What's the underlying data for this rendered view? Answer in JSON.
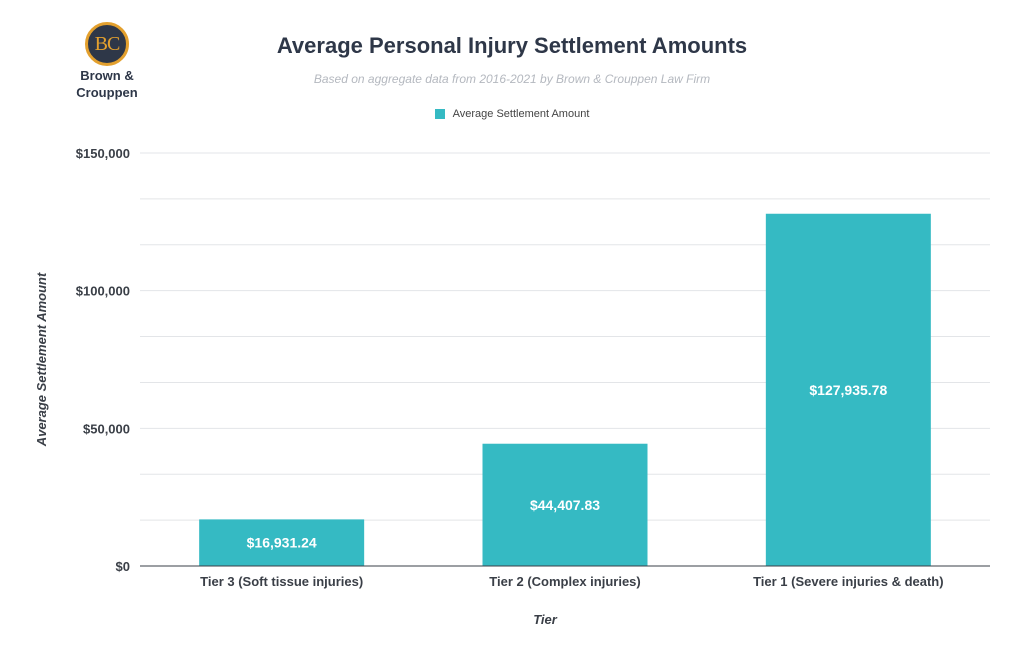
{
  "logo": {
    "monogram": "BC",
    "name_line1": "Brown &",
    "name_line2": "Crouppen"
  },
  "chart_data": {
    "type": "bar",
    "title": "Average Personal Injury Settlement Amounts",
    "subtitle": "Based on aggregate data from 2016-2021 by Brown & Crouppen Law Firm",
    "xlabel": "Tier",
    "ylabel": "Average Settlement Amount",
    "ylim": [
      0,
      150000
    ],
    "yticks": [
      0,
      50000,
      100000,
      150000
    ],
    "ytick_labels": [
      "$0",
      "$50,000",
      "$100,000",
      "$150,000"
    ],
    "categories": [
      "Tier 3 (Soft tissue injuries)",
      "Tier 2 (Complex injuries)",
      "Tier 1 (Severe injuries & death)"
    ],
    "series": [
      {
        "name": "Average Settlement Amount",
        "values": [
          16931.24,
          44407.83,
          127935.78
        ],
        "labels": [
          "$16,931.24",
          "$44,407.83",
          "$127,935.78"
        ],
        "color": "#35bac3"
      }
    ],
    "grid": true,
    "legend_position": "top-center"
  }
}
